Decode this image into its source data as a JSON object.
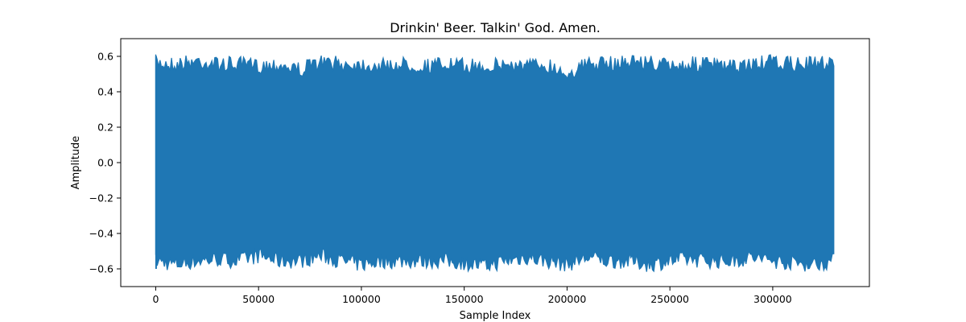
{
  "chart_data": {
    "type": "line",
    "title": "Drinkin' Beer. Talkin' God. Amen.",
    "xlabel": "Sample Index",
    "ylabel": "Amplitude",
    "xlim": [
      -17000,
      347000
    ],
    "ylim": [
      -0.7,
      0.7
    ],
    "xticks": [
      0,
      50000,
      100000,
      150000,
      200000,
      250000,
      300000
    ],
    "xtick_labels": [
      "0",
      "50000",
      "100000",
      "150000",
      "200000",
      "250000",
      "300000"
    ],
    "yticks": [
      -0.6,
      -0.4,
      -0.2,
      0.0,
      0.2,
      0.4,
      0.6
    ],
    "ytick_labels": [
      "−0.6",
      "−0.4",
      "−0.2",
      "0.0",
      "0.2",
      "0.4",
      "0.6"
    ],
    "grid": false,
    "legend": false,
    "series": [
      {
        "color": "#1f77b4",
        "x": [
          0,
          10000,
          20000,
          30000,
          40000,
          50000,
          60000,
          70000,
          80000,
          90000,
          100000,
          110000,
          120000,
          130000,
          140000,
          150000,
          160000,
          170000,
          180000,
          190000,
          200000,
          210000,
          220000,
          230000,
          240000,
          250000,
          260000,
          270000,
          280000,
          290000,
          300000,
          310000,
          320000,
          330000
        ],
        "upper_envelope": [
          0.61,
          0.6,
          0.62,
          0.6,
          0.6,
          0.59,
          0.6,
          0.57,
          0.61,
          0.6,
          0.6,
          0.59,
          0.6,
          0.59,
          0.6,
          0.59,
          0.59,
          0.6,
          0.59,
          0.6,
          0.55,
          0.6,
          0.6,
          0.62,
          0.61,
          0.59,
          0.6,
          0.6,
          0.58,
          0.6,
          0.61,
          0.6,
          0.6,
          0.62
        ],
        "lower_envelope": [
          -0.6,
          -0.62,
          -0.6,
          -0.59,
          -0.6,
          -0.57,
          -0.6,
          -0.6,
          -0.57,
          -0.6,
          -0.62,
          -0.6,
          -0.6,
          -0.6,
          -0.6,
          -0.61,
          -0.63,
          -0.6,
          -0.58,
          -0.6,
          -0.62,
          -0.58,
          -0.6,
          -0.6,
          -0.62,
          -0.6,
          -0.59,
          -0.6,
          -0.6,
          -0.58,
          -0.6,
          -0.61,
          -0.62,
          -0.6
        ]
      }
    ]
  }
}
